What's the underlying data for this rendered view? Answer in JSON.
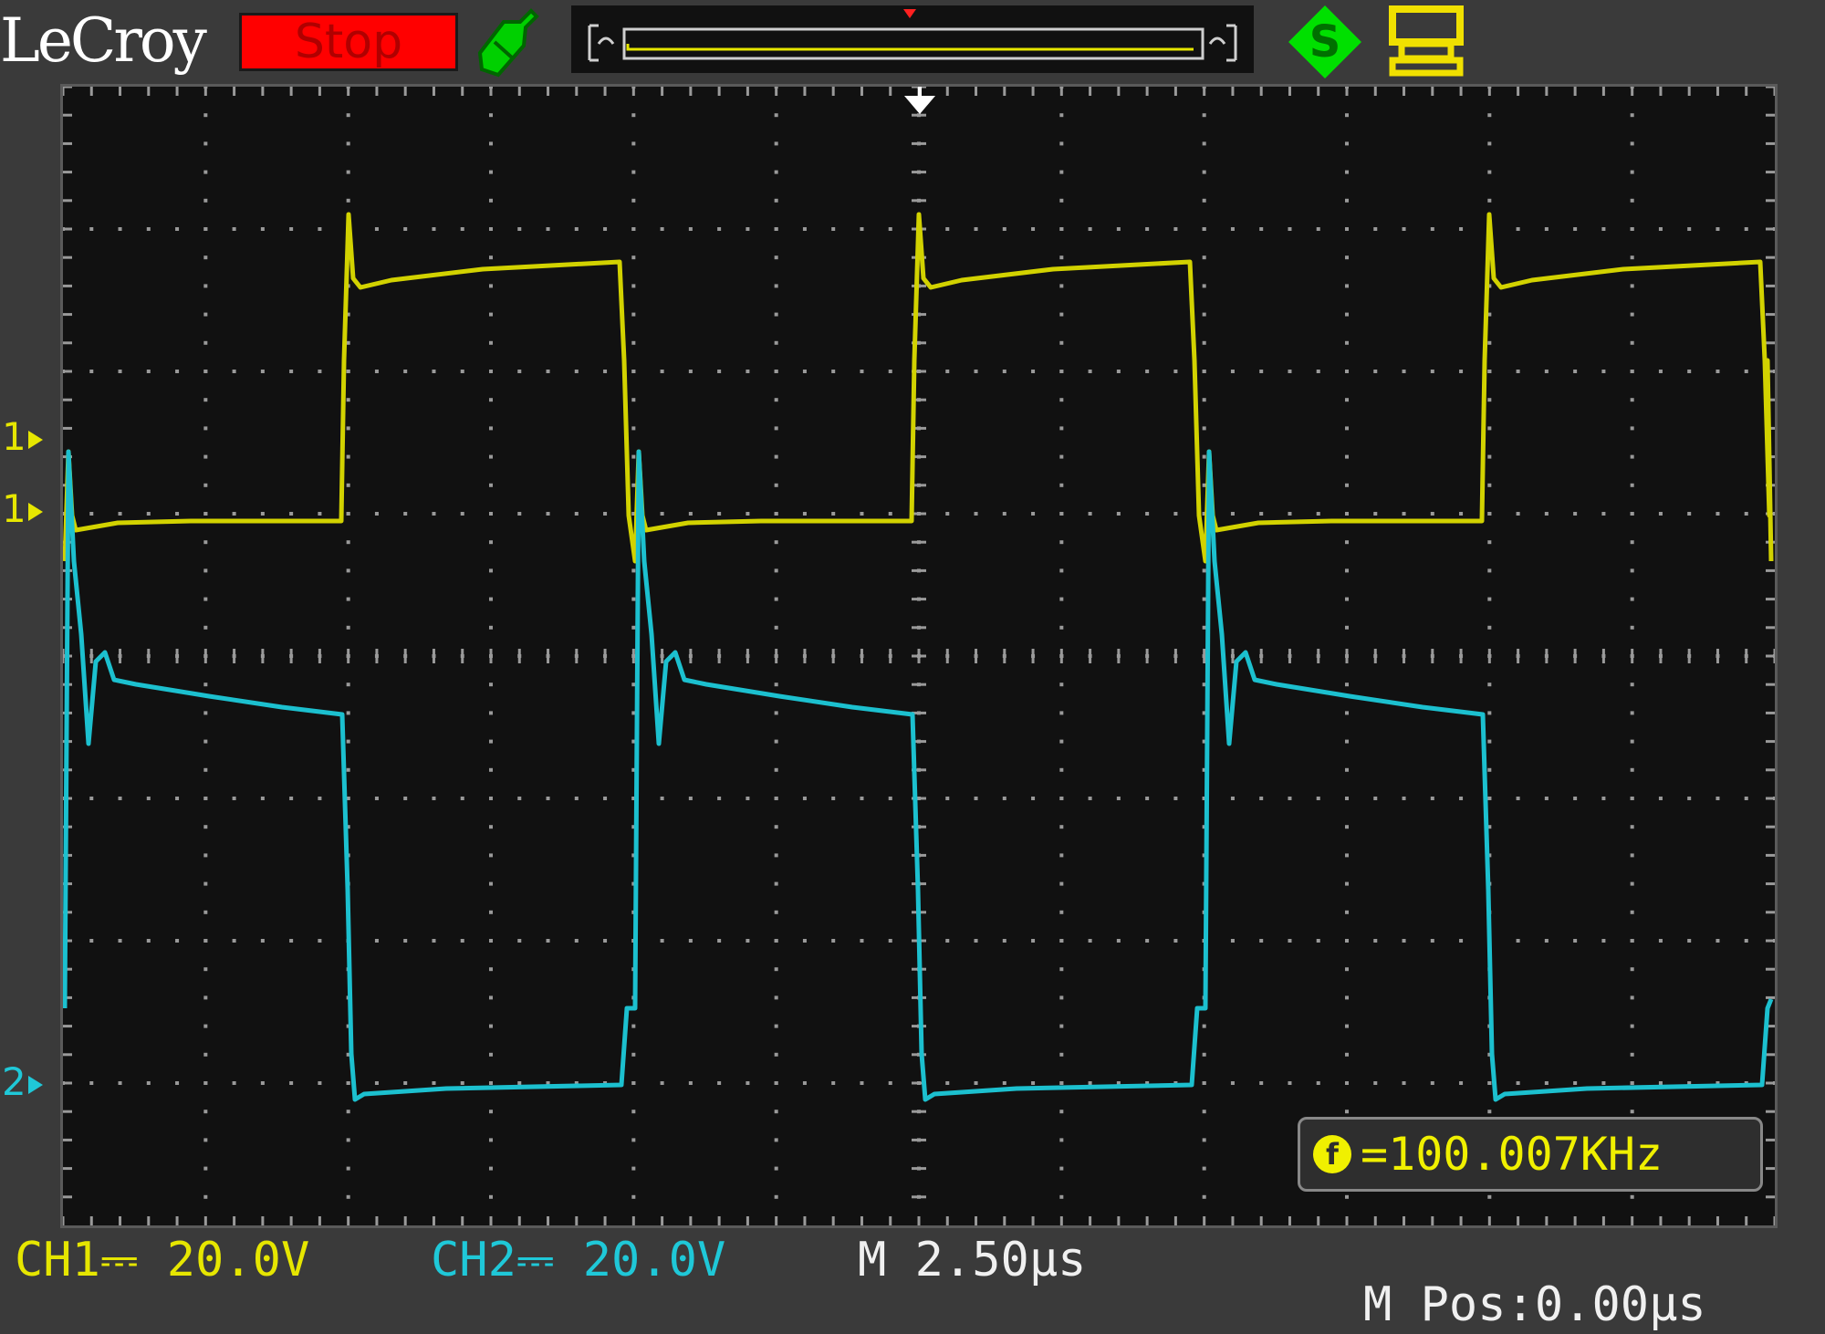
{
  "header": {
    "brand": "LeCroy",
    "run_state": "Stop",
    "trigger_icon": "trigger-armed-icon",
    "status_icons": [
      "sample-mode-icon",
      "printer-icon"
    ]
  },
  "channels": {
    "ch1": {
      "ref_marker_a": "1",
      "ref_marker_b": "1",
      "scale_label": "CH1⎓ 20.0V",
      "color": "#e6e600"
    },
    "ch2": {
      "ref_marker": "2",
      "scale_label": "CH2⎓ 20.0V",
      "color": "#1fc8d8"
    }
  },
  "timebase": {
    "scale_label": "M 2.50μs",
    "position_label": "M Pos:0.00μs"
  },
  "measurement": {
    "frequency_label": "=100.007KHz",
    "icon_letter": "f"
  },
  "graticule": {
    "h_divisions": 12,
    "v_divisions": 8
  },
  "colors": {
    "background": "#3a3a3a",
    "screen": "#111111",
    "stop": "#ff0000",
    "grid_dots": "#9a9a9a"
  }
}
